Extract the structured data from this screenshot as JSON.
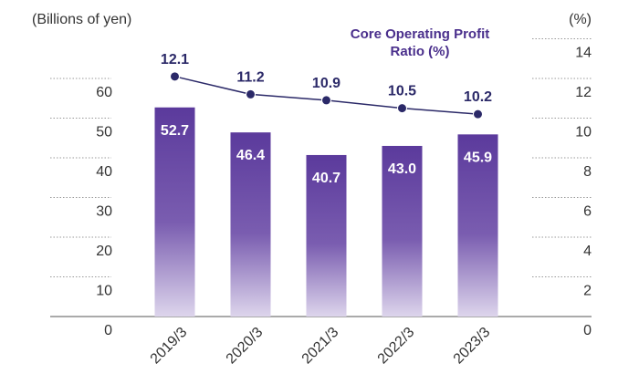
{
  "chart_data": {
    "type": "bar_line",
    "y_label": "(Billions of yen)",
    "y2_label": "(%)",
    "categories": [
      "2019/3",
      "2020/3",
      "2021/3",
      "2022/3",
      "2023/3"
    ],
    "series": [
      {
        "type": "bar",
        "color": "#5b3a9c",
        "values": [
          52.7,
          46.4,
          40.7,
          43.0,
          45.9
        ],
        "value_labels": [
          "52.7",
          "46.4",
          "40.7",
          "43.0",
          "45.9"
        ]
      },
      {
        "type": "line",
        "name": "Core Operating Profit  Ratio (%)",
        "color": "#2b2968",
        "axis": "y2",
        "values": [
          12.1,
          11.2,
          10.9,
          10.5,
          10.2
        ]
      }
    ],
    "ylim": [
      0,
      70
    ],
    "yticks": [
      0,
      10,
      20,
      30,
      40,
      50,
      60
    ],
    "y2lim": [
      0,
      14
    ],
    "y2ticks": [
      0,
      2,
      4,
      6,
      8,
      10,
      12,
      14
    ]
  }
}
